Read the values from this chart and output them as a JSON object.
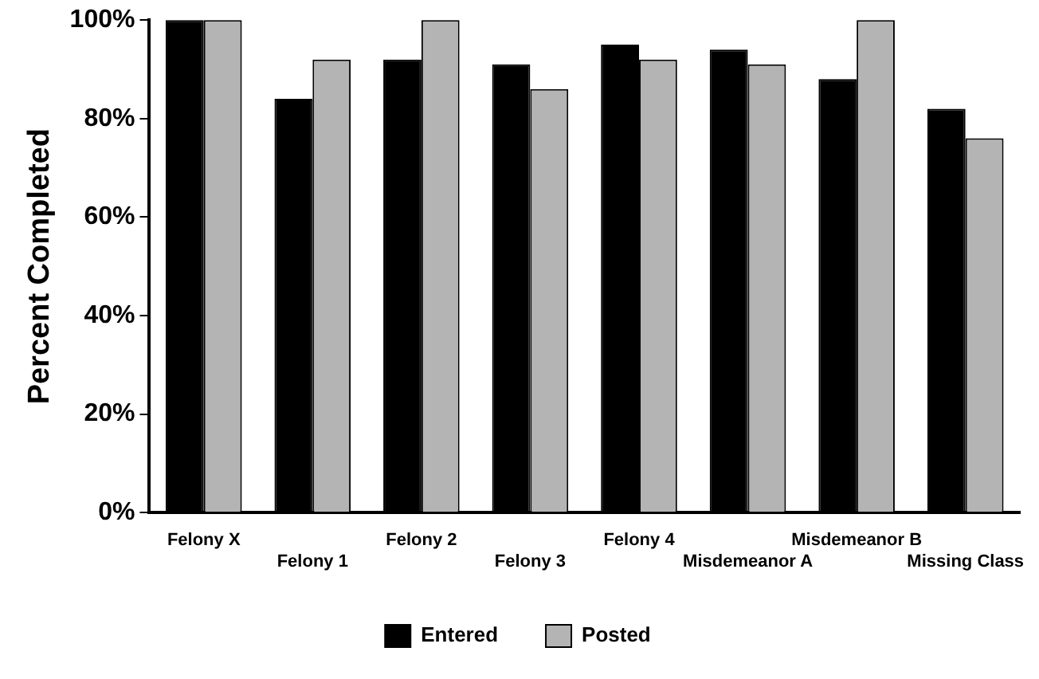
{
  "chart_data": {
    "type": "bar",
    "ylabel": "Percent Completed",
    "categories": [
      "Felony X",
      "Felony 1",
      "Felony 2",
      "Felony 3",
      "Felony 4",
      "Misdemeanor A",
      "Misdemeanor B",
      "Missing Class"
    ],
    "series": [
      {
        "name": "Entered",
        "color": "#000000",
        "values": [
          100,
          84,
          92,
          91,
          95,
          94,
          88,
          82
        ]
      },
      {
        "name": "Posted",
        "color": "#b4b4b4",
        "values": [
          100,
          92,
          100,
          86,
          92,
          91,
          100,
          76
        ]
      }
    ],
    "ylim": [
      0,
      100
    ],
    "yticks": [
      {
        "value": 0,
        "label": "0%"
      },
      {
        "value": 20,
        "label": "20%"
      },
      {
        "value": 40,
        "label": "40%"
      },
      {
        "value": 60,
        "label": "60%"
      },
      {
        "value": 80,
        "label": "80%"
      },
      {
        "value": 100,
        "label": "100%"
      }
    ],
    "grid": false,
    "legend": "bottom"
  }
}
